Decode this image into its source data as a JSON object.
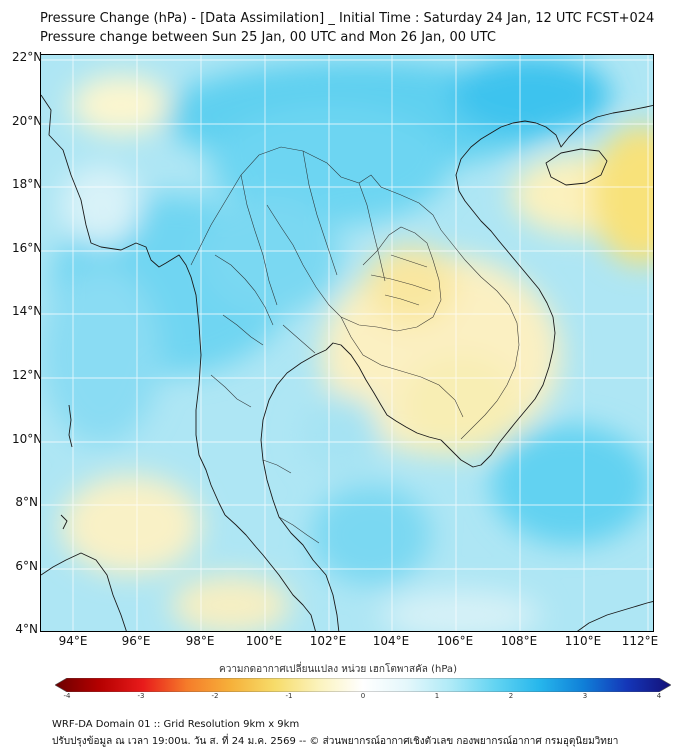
{
  "header": {
    "title_line1": "Pressure Change (hPa) - [Data Assimilation] _ Initial Time : Saturday 24 Jan, 12 UTC FCST+024",
    "title_line2": "Pressure change between Sun 25 Jan, 00 UTC and Mon 26 Jan, 00 UTC"
  },
  "map": {
    "lat_labels": [
      "22°N",
      "20°N",
      "18°N",
      "16°N",
      "14°N",
      "12°N",
      "10°N",
      "8°N",
      "6°N",
      "4°N"
    ],
    "lon_labels": [
      "94°E",
      "96°E",
      "98°E",
      "100°E",
      "102°E",
      "104°E",
      "106°E",
      "108°E",
      "110°E",
      "112°E"
    ]
  },
  "colorbar": {
    "label": "ความกดอากาศเปลี่ยนแปลง หน่วย เฮกโตพาสคัล (hPa)",
    "min": -4,
    "max": 4,
    "tick_labels": [
      "-4",
      "-3",
      "-2",
      "-1",
      "0",
      "1",
      "2",
      "3",
      "4"
    ],
    "colors": [
      "#6b0000",
      "#b40000",
      "#e81b1b",
      "#f57c2a",
      "#f6b13a",
      "#f7dc6a",
      "#fbf3bd",
      "#ffffff",
      "#e4f7fb",
      "#aeeaf7",
      "#63d4f2",
      "#27b7ec",
      "#1080d8",
      "#1436b8",
      "#141077"
    ]
  },
  "footer": {
    "line1": "WRF-DA Domain 01 :: Grid Resolution 9km x 9km",
    "line2": "ปรับปรุงข้อมูล ณ เวลา 19:00น. วัน ส. ที่ 24 ม.ค. 2569 -- © ส่วนพยากรณ์อากาศเชิงตัวเลข กองพยากรณ์อากาศ กรมอุตุนิยมวิทยา"
  }
}
